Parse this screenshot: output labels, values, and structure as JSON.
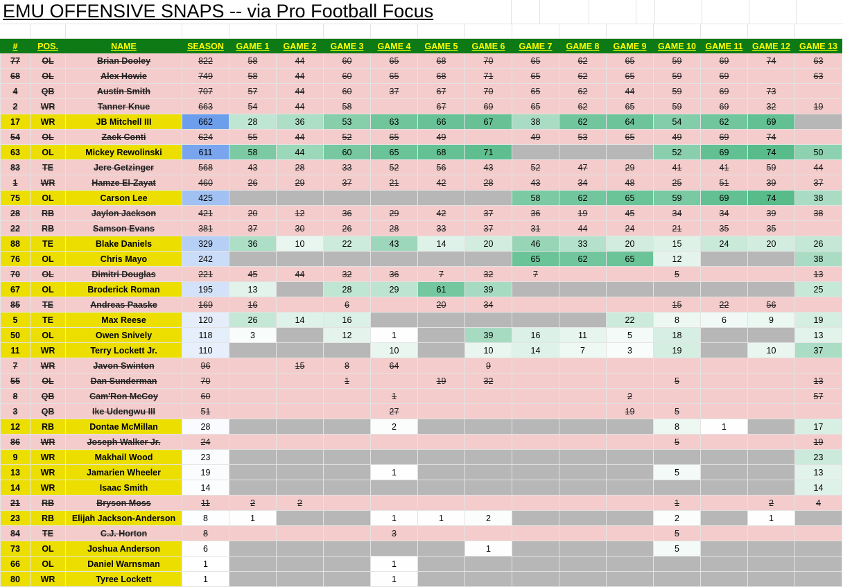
{
  "title": "EMU OFFENSIVE SNAPS -- via Pro Football Focus",
  "headers": [
    "#",
    "POS.",
    "NAME",
    "SEASON",
    "GAME 1",
    "GAME 2",
    "GAME 3",
    "GAME 4",
    "GAME 5",
    "GAME 6",
    "GAME 7",
    "GAME 8",
    "GAME 9",
    "GAME 10",
    "GAME 11",
    "GAME 12",
    "GAME 13"
  ],
  "colors": {
    "header_bg": "#0d7a16",
    "header_text": "#ffff00",
    "active_player": "#ecdf00",
    "inactive_row": "#f4cccc",
    "did_not_play": "#b7b7b7",
    "snap_high": "#57bb8a",
    "season_high": "#6d9eeb"
  },
  "rows": [
    {
      "num": "77",
      "pos": "OL",
      "name": "Brian Dooley",
      "season": "822",
      "games": [
        "58",
        "44",
        "60",
        "65",
        "68",
        "70",
        "65",
        "62",
        "65",
        "59",
        "69",
        "74",
        "63"
      ],
      "status": "gone"
    },
    {
      "num": "68",
      "pos": "OL",
      "name": "Alex Howie",
      "season": "749",
      "games": [
        "58",
        "44",
        "60",
        "65",
        "68",
        "71",
        "65",
        "62",
        "65",
        "59",
        "69",
        "",
        "63"
      ],
      "status": "gone"
    },
    {
      "num": "4",
      "pos": "QB",
      "name": "Austin Smith",
      "season": "707",
      "games": [
        "57",
        "44",
        "60",
        "37",
        "67",
        "70",
        "65",
        "62",
        "44",
        "59",
        "69",
        "73",
        ""
      ],
      "status": "gone"
    },
    {
      "num": "2",
      "pos": "WR",
      "name": "Tanner Knue",
      "season": "663",
      "games": [
        "54",
        "44",
        "58",
        "",
        "67",
        "69",
        "65",
        "62",
        "65",
        "59",
        "69",
        "32",
        "19"
      ],
      "status": "gone"
    },
    {
      "num": "17",
      "pos": "WR",
      "name": "JB Mitchell III",
      "season": "662",
      "games": [
        "28",
        "36",
        "53",
        "63",
        "66",
        "67",
        "38",
        "62",
        "64",
        "54",
        "62",
        "69",
        null
      ],
      "status": "active"
    },
    {
      "num": "54",
      "pos": "OL",
      "name": "Zack Conti",
      "season": "624",
      "games": [
        "55",
        "44",
        "52",
        "65",
        "49",
        "",
        "49",
        "53",
        "65",
        "49",
        "69",
        "74",
        ""
      ],
      "status": "gone"
    },
    {
      "num": "63",
      "pos": "OL",
      "name": "Mickey Rewolinski",
      "season": "611",
      "games": [
        "58",
        "44",
        "60",
        "65",
        "68",
        "71",
        null,
        null,
        null,
        "52",
        "69",
        "74",
        "50"
      ],
      "status": "active"
    },
    {
      "num": "83",
      "pos": "TE",
      "name": "Jere Getzinger",
      "season": "568",
      "games": [
        "43",
        "28",
        "33",
        "52",
        "56",
        "43",
        "52",
        "47",
        "29",
        "41",
        "41",
        "59",
        "44"
      ],
      "status": "gone"
    },
    {
      "num": "1",
      "pos": "WR",
      "name": "Hamze El-Zayat",
      "season": "460",
      "games": [
        "26",
        "29",
        "37",
        "21",
        "42",
        "28",
        "43",
        "34",
        "48",
        "25",
        "51",
        "39",
        "37"
      ],
      "status": "gone"
    },
    {
      "num": "75",
      "pos": "OL",
      "name": "Carson Lee",
      "season": "425",
      "games": [
        null,
        null,
        null,
        null,
        null,
        null,
        "58",
        "62",
        "65",
        "59",
        "69",
        "74",
        "38"
      ],
      "status": "active"
    },
    {
      "num": "28",
      "pos": "RB",
      "name": "Jaylon Jackson",
      "season": "421",
      "games": [
        "20",
        "12",
        "36",
        "29",
        "42",
        "37",
        "36",
        "19",
        "45",
        "34",
        "34",
        "39",
        "38"
      ],
      "status": "gone"
    },
    {
      "num": "22",
      "pos": "RB",
      "name": "Samson Evans",
      "season": "381",
      "games": [
        "37",
        "30",
        "26",
        "28",
        "33",
        "37",
        "31",
        "44",
        "24",
        "21",
        "35",
        "35",
        ""
      ],
      "status": "gone"
    },
    {
      "num": "88",
      "pos": "TE",
      "name": "Blake Daniels",
      "season": "329",
      "games": [
        "36",
        "10",
        "22",
        "43",
        "14",
        "20",
        "46",
        "33",
        "20",
        "15",
        "24",
        "20",
        "26"
      ],
      "status": "active"
    },
    {
      "num": "76",
      "pos": "OL",
      "name": "Chris Mayo",
      "season": "242",
      "games": [
        null,
        null,
        null,
        null,
        null,
        null,
        "65",
        "62",
        "65",
        "12",
        null,
        null,
        "38"
      ],
      "status": "active"
    },
    {
      "num": "70",
      "pos": "OL",
      "name": "Dimitri Douglas",
      "season": "221",
      "games": [
        "45",
        "44",
        "32",
        "36",
        "7",
        "32",
        "7",
        "",
        "",
        "5",
        "",
        "",
        "13"
      ],
      "status": "gone"
    },
    {
      "num": "67",
      "pos": "OL",
      "name": "Broderick Roman",
      "season": "195",
      "games": [
        "13",
        null,
        "28",
        "29",
        "61",
        "39",
        null,
        null,
        null,
        null,
        null,
        null,
        "25"
      ],
      "status": "active"
    },
    {
      "num": "85",
      "pos": "TE",
      "name": "Andreas Paaske",
      "season": "169",
      "games": [
        "16",
        "",
        "6",
        "",
        "20",
        "34",
        "",
        "",
        "",
        "15",
        "22",
        "56",
        ""
      ],
      "status": "gone"
    },
    {
      "num": "5",
      "pos": "TE",
      "name": "Max Reese",
      "season": "120",
      "games": [
        "26",
        "14",
        "16",
        null,
        null,
        null,
        null,
        null,
        "22",
        "8",
        "6",
        "9",
        "19"
      ],
      "status": "active"
    },
    {
      "num": "50",
      "pos": "OL",
      "name": "Owen Snively",
      "season": "118",
      "games": [
        "3",
        null,
        "12",
        "1",
        null,
        "39",
        "16",
        "11",
        "5",
        "18",
        null,
        null,
        "13"
      ],
      "status": "active"
    },
    {
      "num": "11",
      "pos": "WR",
      "name": "Terry Lockett Jr.",
      "season": "110",
      "games": [
        null,
        null,
        null,
        "10",
        null,
        "10",
        "14",
        "7",
        "3",
        "19",
        null,
        "10",
        "37"
      ],
      "status": "active"
    },
    {
      "num": "7",
      "pos": "WR",
      "name": "Javon Swinton",
      "season": "96",
      "games": [
        "",
        "15",
        "8",
        "64",
        "",
        "9",
        "",
        "",
        "",
        "",
        "",
        "",
        ""
      ],
      "status": "gone"
    },
    {
      "num": "55",
      "pos": "OL",
      "name": "Dan Sunderman",
      "season": "70",
      "games": [
        "",
        "",
        "1",
        "",
        "19",
        "32",
        "",
        "",
        "",
        "5",
        "",
        "",
        "13"
      ],
      "status": "gone"
    },
    {
      "num": "8",
      "pos": "QB",
      "name": "Cam'Ron McCoy",
      "season": "60",
      "games": [
        "",
        "",
        "",
        "1",
        "",
        "",
        "",
        "",
        "2",
        "",
        "",
        "",
        "57"
      ],
      "status": "gone"
    },
    {
      "num": "3",
      "pos": "QB",
      "name": "Ike Udengwu III",
      "season": "51",
      "games": [
        "",
        "",
        "",
        "27",
        "",
        "",
        "",
        "",
        "19",
        "5",
        "",
        "",
        ""
      ],
      "status": "gone"
    },
    {
      "num": "12",
      "pos": "RB",
      "name": "Dontae McMillan",
      "season": "28",
      "games": [
        null,
        null,
        null,
        "2",
        null,
        null,
        null,
        null,
        null,
        "8",
        "1",
        null,
        "17"
      ],
      "status": "active"
    },
    {
      "num": "86",
      "pos": "WR",
      "name": "Joseph Walker Jr.",
      "season": "24",
      "games": [
        "",
        "",
        "",
        "",
        "",
        "",
        "",
        "",
        "",
        "5",
        "",
        "",
        "19"
      ],
      "status": "gone"
    },
    {
      "num": "9",
      "pos": "WR",
      "name": "Makhail Wood",
      "season": "23",
      "games": [
        null,
        null,
        null,
        null,
        null,
        null,
        null,
        null,
        null,
        null,
        null,
        null,
        "23"
      ],
      "status": "active"
    },
    {
      "num": "13",
      "pos": "WR",
      "name": "Jamarien Wheeler",
      "season": "19",
      "games": [
        null,
        null,
        null,
        "1",
        null,
        null,
        null,
        null,
        null,
        "5",
        null,
        null,
        "13"
      ],
      "status": "active"
    },
    {
      "num": "14",
      "pos": "WR",
      "name": "Isaac Smith",
      "season": "14",
      "games": [
        null,
        null,
        null,
        null,
        null,
        null,
        null,
        null,
        null,
        null,
        null,
        null,
        "14"
      ],
      "status": "active"
    },
    {
      "num": "21",
      "pos": "RB",
      "name": "Bryson Moss",
      "season": "11",
      "games": [
        "2",
        "2",
        "",
        "",
        "",
        "",
        "",
        "",
        "",
        "1",
        "",
        "2",
        "4"
      ],
      "status": "gone"
    },
    {
      "num": "23",
      "pos": "RB",
      "name": "Elijah Jackson-Anderson",
      "season": "8",
      "games": [
        "1",
        null,
        null,
        "1",
        "1",
        "2",
        null,
        null,
        null,
        "2",
        null,
        "1",
        null
      ],
      "status": "active"
    },
    {
      "num": "84",
      "pos": "TE",
      "name": "C.J. Horton",
      "season": "8",
      "games": [
        "",
        "",
        "",
        "3",
        "",
        "",
        "",
        "",
        "",
        "5",
        "",
        "",
        ""
      ],
      "status": "gone"
    },
    {
      "num": "73",
      "pos": "OL",
      "name": "Joshua Anderson",
      "season": "6",
      "games": [
        null,
        null,
        null,
        null,
        null,
        "1",
        null,
        null,
        null,
        "5",
        null,
        null,
        null
      ],
      "status": "active"
    },
    {
      "num": "66",
      "pos": "OL",
      "name": "Daniel Warnsman",
      "season": "1",
      "games": [
        null,
        null,
        null,
        "1",
        null,
        null,
        null,
        null,
        null,
        null,
        null,
        null,
        null
      ],
      "status": "active"
    },
    {
      "num": "80",
      "pos": "WR",
      "name": "Tyree Lockett",
      "season": "1",
      "games": [
        null,
        null,
        null,
        "1",
        null,
        null,
        null,
        null,
        null,
        null,
        null,
        null,
        null
      ],
      "status": "active"
    }
  ]
}
